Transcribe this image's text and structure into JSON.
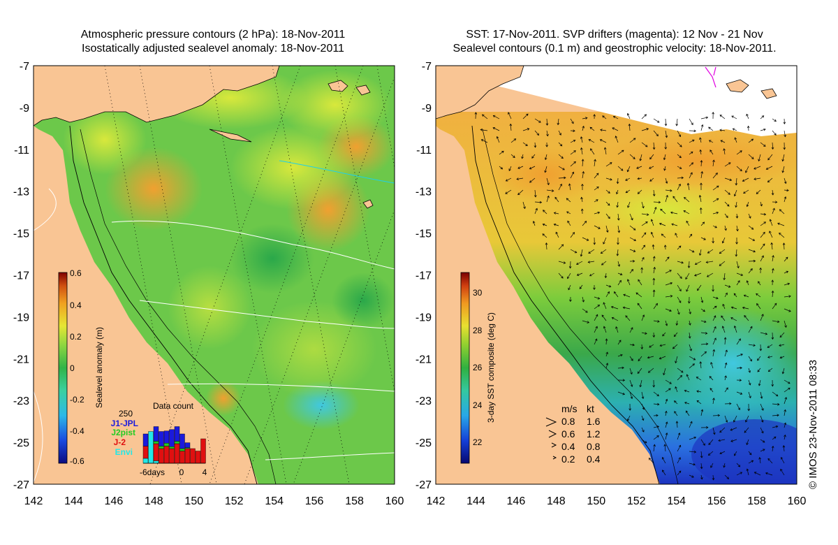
{
  "left_panel": {
    "title_line1": "Atmospheric pressure contours (2 hPa): 18-Nov-2011",
    "title_line2": "Isostatically adjusted sealevel anomaly: 18-Nov-2011",
    "colorbar": {
      "label": "Sealevel anomaly (m)",
      "ticks": [
        "0.6",
        "0.4",
        "0.2",
        "0",
        "-0.2",
        "-0.4",
        "-0.6"
      ],
      "range": [
        -0.6,
        0.6
      ]
    },
    "data_count": {
      "title": "Data count",
      "ymax_label": "250",
      "xlabel": "-6days",
      "xticks": [
        "0",
        "4"
      ],
      "legend": [
        {
          "name": "J1-JPL",
          "color": "#1a1adc"
        },
        {
          "name": "J2pist",
          "color": "#22cc22"
        },
        {
          "name": "J-2",
          "color": "#e01010"
        },
        {
          "name": "Envi",
          "color": "#22e8e8"
        }
      ]
    }
  },
  "right_panel": {
    "title_line1": "SST: 17-Nov-2011. SVP drifters (magenta): 12 Nov - 21 Nov",
    "title_line2": "Sealevel contours (0.1 m) and geostrophic velocity: 18-Nov-2011.",
    "colorbar": {
      "label": "3-day SST composite (deg C)",
      "ticks": [
        "30",
        "28",
        "26",
        "24",
        "22"
      ],
      "range": [
        21,
        31
      ]
    },
    "velocity_legend": {
      "header_ms": "m/s",
      "header_kt": "kt",
      "rows": [
        {
          "ms": "0.8",
          "kt": "1.6"
        },
        {
          "ms": "0.6",
          "kt": "1.2"
        },
        {
          "ms": "0.4",
          "kt": "0.8"
        },
        {
          "ms": "0.2",
          "kt": "0.4"
        }
      ]
    }
  },
  "axes": {
    "lon_ticks": [
      "142",
      "144",
      "146",
      "148",
      "150",
      "152",
      "154",
      "156",
      "158",
      "160"
    ],
    "lat_ticks": [
      "-7",
      "-9",
      "-11",
      "-13",
      "-15",
      "-17",
      "-19",
      "-21",
      "-23",
      "-25",
      "-27"
    ],
    "lon_range": [
      142,
      160
    ],
    "lat_range": [
      -27,
      -7
    ]
  },
  "copyright": "© IMOS 23-Nov-2011 08:33",
  "colors": {
    "land": "#f9c594",
    "sla_green": "#5cc64a",
    "sla_yellow": "#c8e63c",
    "sla_orange": "#f5b53a",
    "sla_cyan": "#4fd0c8",
    "sst_warm": "#f0b040",
    "sst_green": "#46b64c",
    "sst_blue": "#2a7ae0",
    "sst_deep": "#1c3ccc"
  }
}
